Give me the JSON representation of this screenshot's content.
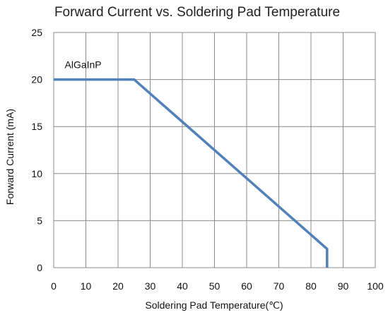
{
  "chart_data": {
    "type": "line",
    "title": "Forward Current  vs. Soldering Pad Temperature",
    "xlabel": "Soldering Pad Temperature(℃)",
    "ylabel": "Forward Current (mA)",
    "xlim": [
      0,
      100
    ],
    "ylim": [
      0,
      25
    ],
    "xticks": [
      "0",
      "10",
      "20",
      "30",
      "40",
      "50",
      "60",
      "70",
      "80",
      "90",
      "100"
    ],
    "yticks": [
      "0",
      "5",
      "10",
      "15",
      "20",
      "25"
    ],
    "grid": true,
    "series": [
      {
        "name": "AlGaInP",
        "color": "#4f81bd",
        "x": [
          0,
          25,
          85,
          85
        ],
        "y": [
          20,
          20,
          2,
          0
        ]
      }
    ],
    "annotations": [
      {
        "text": "AlGaInP",
        "x": 10,
        "y": 21.2
      }
    ]
  }
}
